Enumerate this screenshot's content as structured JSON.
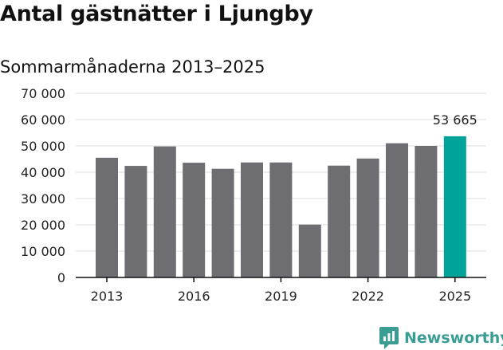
{
  "header": {
    "title": "Antal gästnätter i Ljungby",
    "subtitle": "Sommarmånaderna 2013–2025"
  },
  "brand": {
    "name": "Newsworthy",
    "icon": "newsworthy-logo-icon"
  },
  "colors": {
    "bar": "#6e6d72",
    "highlight": "#00a39a",
    "grid": "#dddddd",
    "axis": "#111111"
  },
  "chart_data": {
    "type": "bar",
    "categories": [
      "2013",
      "2014",
      "2015",
      "2016",
      "2017",
      "2018",
      "2019",
      "2020",
      "2021",
      "2022",
      "2023",
      "2024",
      "2025"
    ],
    "values": [
      45500,
      42400,
      49800,
      43600,
      41300,
      43700,
      43700,
      20100,
      42500,
      45200,
      51000,
      50000,
      53665
    ],
    "highlight_index": 12,
    "data_labels": [
      {
        "index": 12,
        "text": "53 665"
      }
    ],
    "title": "Antal gästnätter i Ljungby",
    "subtitle": "Sommarmånaderna 2013–2025",
    "ylim": [
      0,
      70000
    ],
    "yticks": [
      0,
      10000,
      20000,
      30000,
      40000,
      50000,
      60000,
      70000
    ],
    "ytick_labels": [
      "0",
      "10 000",
      "20 000",
      "30 000",
      "40 000",
      "50 000",
      "60 000",
      "70 000"
    ],
    "xtick_labels": [
      {
        "index": 0,
        "text": "2013"
      },
      {
        "index": 3,
        "text": "2016"
      },
      {
        "index": 6,
        "text": "2019"
      },
      {
        "index": 9,
        "text": "2022"
      },
      {
        "index": 12,
        "text": "2025"
      }
    ],
    "grid": "horizontal",
    "legend": "none"
  }
}
